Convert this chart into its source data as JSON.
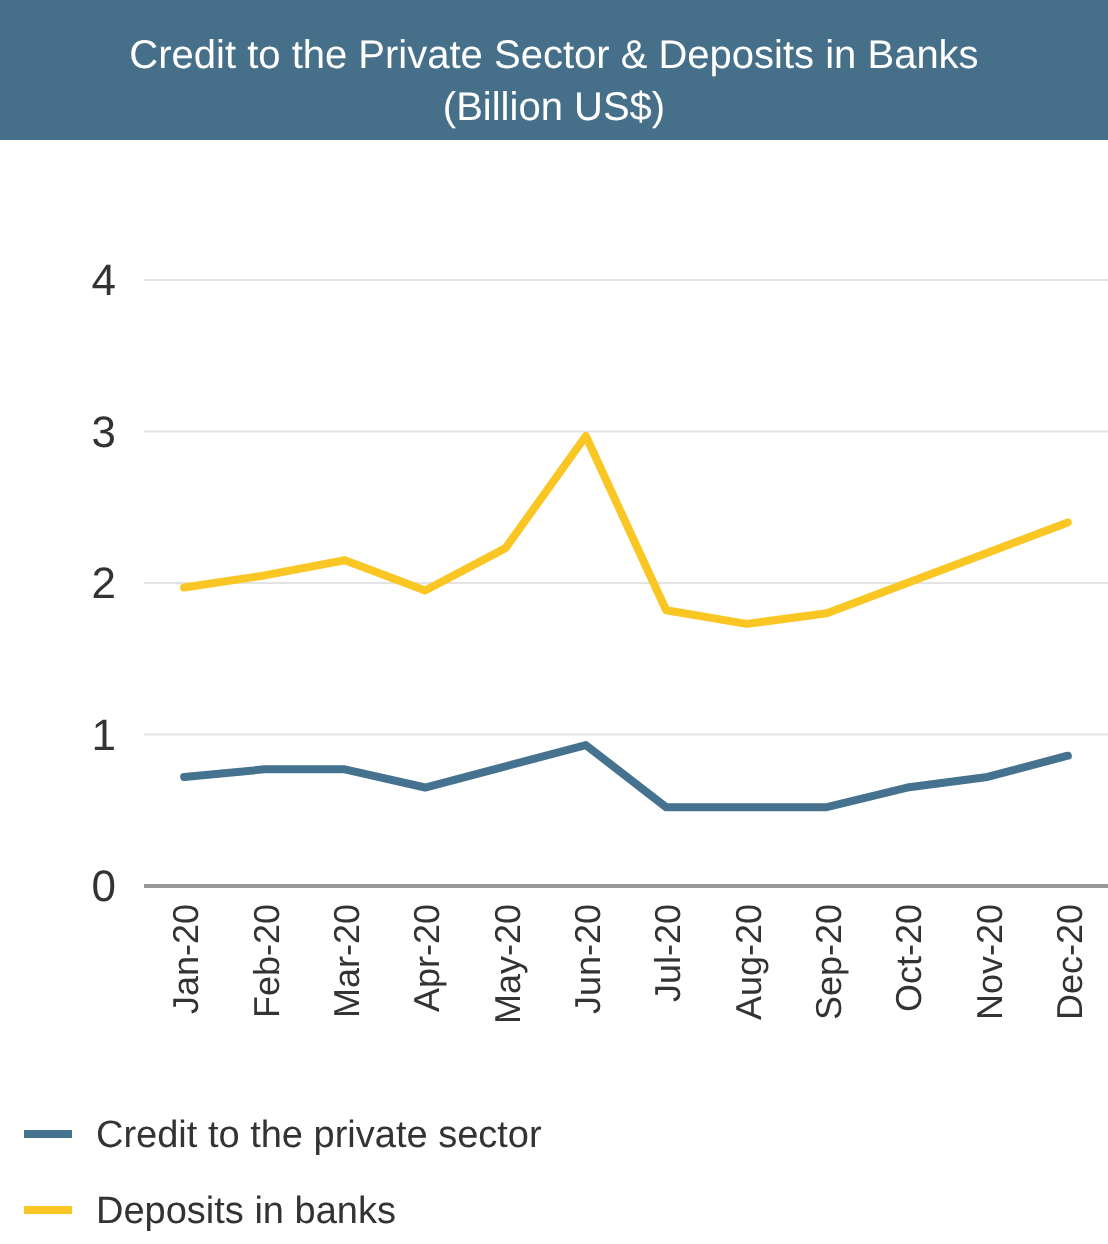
{
  "chart_data": {
    "type": "line",
    "title": "Credit to the Private Sector & Deposits in Banks",
    "subtitle": "(Billion US$)",
    "categories": [
      "Jan-20",
      "Feb-20",
      "Mar-20",
      "Apr-20",
      "May-20",
      "Jun-20",
      "Jul-20",
      "Aug-20",
      "Sep-20",
      "Oct-20",
      "Nov-20",
      "Dec-20"
    ],
    "series": [
      {
        "name": "Credit to the private sector",
        "color": "#44728f",
        "values": [
          0.72,
          0.77,
          0.77,
          0.65,
          0.79,
          0.93,
          0.52,
          0.52,
          0.52,
          0.65,
          0.72,
          0.86
        ]
      },
      {
        "name": "Deposits in banks",
        "color": "#f9c623",
        "values": [
          1.97,
          2.05,
          2.15,
          1.95,
          2.23,
          2.97,
          1.82,
          1.73,
          1.8,
          2.0,
          2.2,
          2.4
        ]
      }
    ],
    "ylim": [
      0,
      4
    ],
    "yticks": [
      0,
      1,
      2,
      3,
      4
    ],
    "grid": "y",
    "legend": "bottom left",
    "marker": "none",
    "line_style": "solid"
  }
}
